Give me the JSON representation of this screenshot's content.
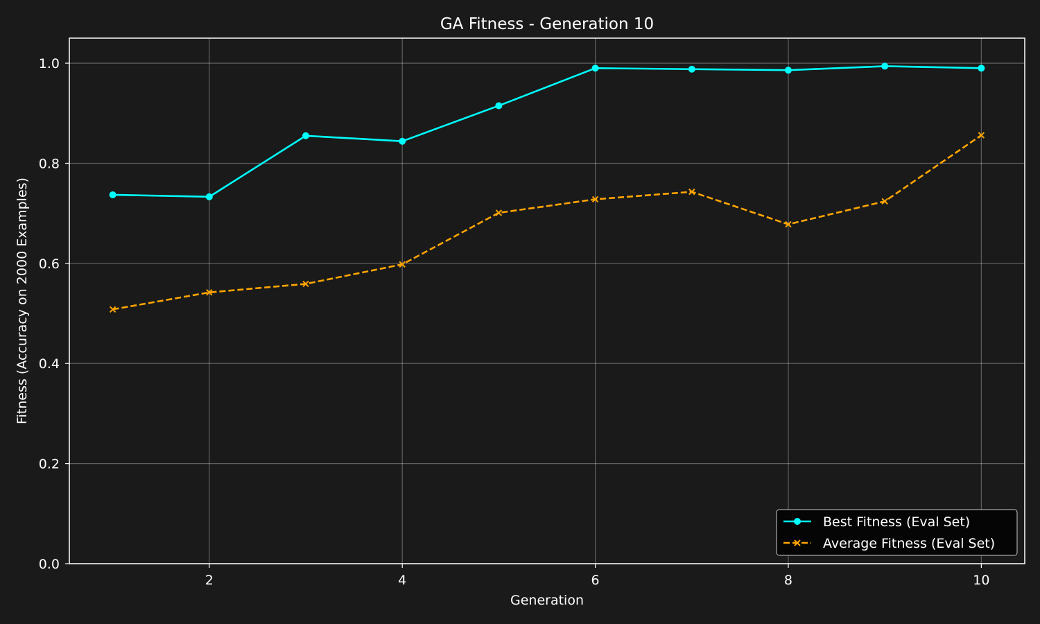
{
  "chart_data": {
    "type": "line",
    "title": "GA Fitness - Generation 10",
    "xlabel": "Generation",
    "ylabel": "Fitness (Accuracy on 2000 Examples)",
    "x": [
      1,
      2,
      3,
      4,
      5,
      6,
      7,
      8,
      9,
      10
    ],
    "xlim": [
      0.55,
      10.45
    ],
    "ylim": [
      0.0,
      1.05
    ],
    "xticks": [
      2,
      4,
      6,
      8,
      10
    ],
    "xtick_labels": [
      "2",
      "4",
      "6",
      "8",
      "10"
    ],
    "yticks": [
      0.0,
      0.2,
      0.4,
      0.6,
      0.8,
      1.0
    ],
    "ytick_labels": [
      "0.0",
      "0.2",
      "0.4",
      "0.6",
      "0.8",
      "1.0"
    ],
    "grid": true,
    "legend_position": "lower-right",
    "series": [
      {
        "name": "Best Fitness (Eval Set)",
        "color": "#00ffff",
        "line_style": "solid",
        "marker": "circle",
        "values": [
          0.737,
          0.733,
          0.855,
          0.844,
          0.915,
          0.99,
          0.988,
          0.986,
          0.994,
          0.99
        ]
      },
      {
        "name": "Average Fitness (Eval Set)",
        "color": "#ffa500",
        "line_style": "dashed",
        "marker": "x",
        "values": [
          0.508,
          0.542,
          0.559,
          0.598,
          0.701,
          0.728,
          0.743,
          0.678,
          0.724,
          0.856
        ]
      }
    ]
  }
}
